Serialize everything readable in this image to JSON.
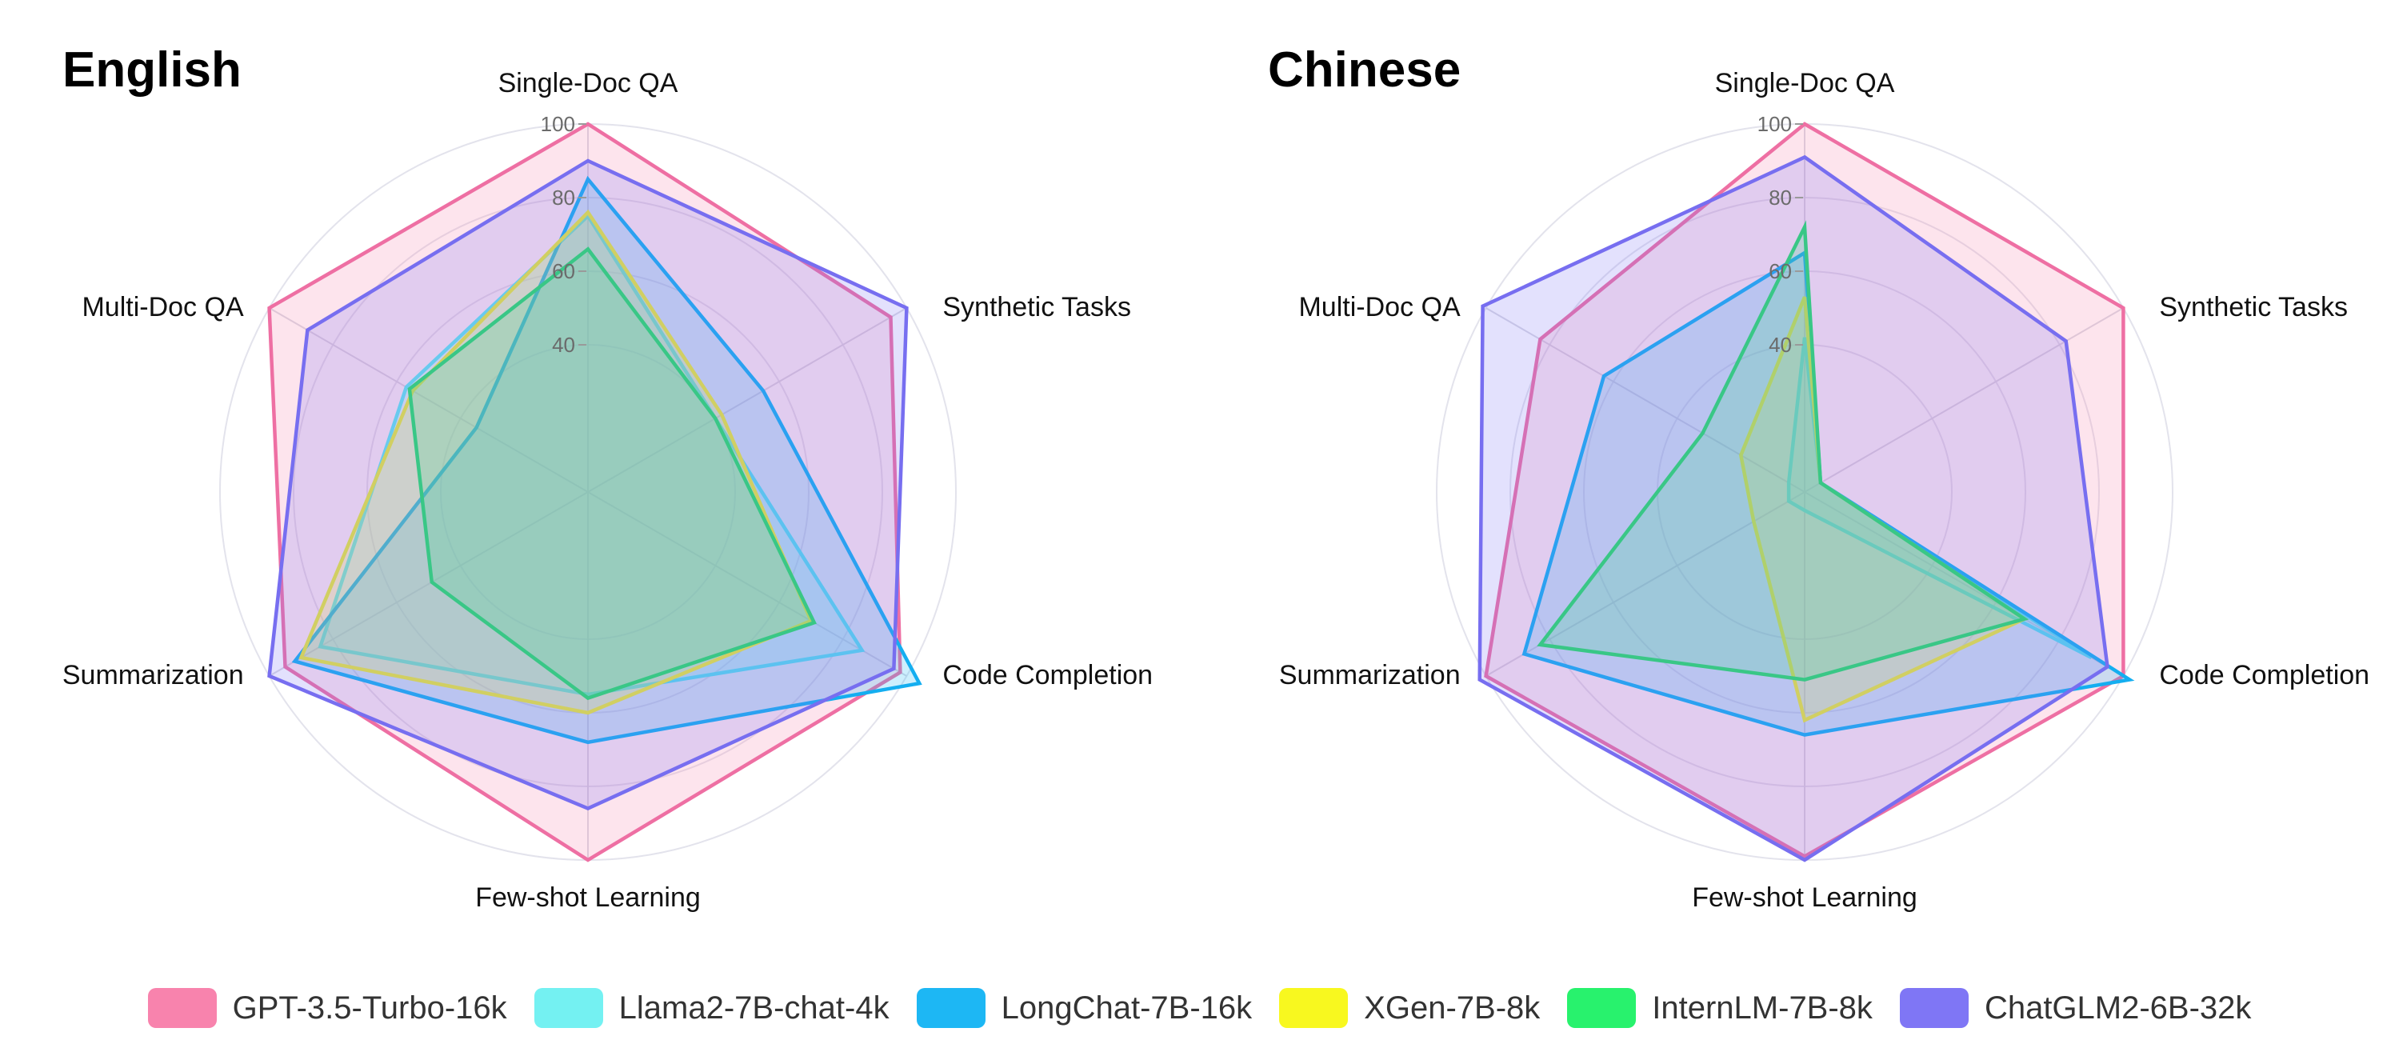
{
  "chart_data": [
    {
      "type": "radar",
      "title": "English",
      "axes": [
        "Single-Doc QA",
        "Synthetic Tasks",
        "Code Completion",
        "Few-shot Learning",
        "Summarization",
        "Multi-Doc QA"
      ],
      "rlim": [
        0,
        100
      ],
      "ticks": [
        40,
        60,
        80,
        100
      ],
      "series": [
        {
          "name": "GPT-3.5-Turbo-16k",
          "values": [
            100,
            95,
            98,
            100,
            95,
            100
          ]
        },
        {
          "name": "Llama2-7B-chat-4k",
          "values": [
            75,
            40,
            86,
            55,
            84,
            57
          ]
        },
        {
          "name": "LongChat-7B-16k",
          "values": [
            85,
            55,
            104,
            68,
            92,
            35
          ]
        },
        {
          "name": "XGen-7B-8k",
          "values": [
            76,
            42,
            70,
            60,
            90,
            55
          ]
        },
        {
          "name": "InternLM-7B-8k",
          "values": [
            66,
            40,
            71,
            56,
            49,
            56
          ]
        },
        {
          "name": "ChatGLM2-6B-32k",
          "values": [
            90,
            100,
            96,
            86,
            100,
            88
          ]
        }
      ]
    },
    {
      "type": "radar",
      "title": "Chinese",
      "axes": [
        "Single-Doc QA",
        "Synthetic Tasks",
        "Code Completion",
        "Few-shot Learning",
        "Summarization",
        "Multi-Doc QA"
      ],
      "rlim": [
        0,
        100
      ],
      "ticks": [
        40,
        60,
        80,
        100
      ],
      "series": [
        {
          "name": "GPT-3.5-Turbo-16k",
          "values": [
            100,
            100,
            100,
            99,
            100,
            83
          ]
        },
        {
          "name": "Llama2-7B-chat-4k",
          "values": [
            42,
            5,
            90,
            5,
            5,
            5
          ]
        },
        {
          "name": "LongChat-7B-16k",
          "values": [
            65,
            5,
            102,
            66,
            88,
            63
          ]
        },
        {
          "name": "XGen-7B-8k",
          "values": [
            53,
            5,
            69,
            62,
            16,
            20
          ]
        },
        {
          "name": "InternLM-7B-8k",
          "values": [
            72,
            5,
            69,
            51,
            83,
            32
          ]
        },
        {
          "name": "ChatGLM2-6B-32k",
          "values": [
            91,
            82,
            95,
            100,
            102,
            101
          ]
        }
      ]
    }
  ],
  "legend": [
    {
      "name": "GPT-3.5-Turbo-16k",
      "color": "#f883ad"
    },
    {
      "name": "Llama2-7B-chat-4k",
      "color": "#74f1f2"
    },
    {
      "name": "LongChat-7B-16k",
      "color": "#1db7f4"
    },
    {
      "name": "XGen-7B-8k",
      "color": "#f8f81f"
    },
    {
      "name": "InternLM-7B-8k",
      "color": "#28f26d"
    },
    {
      "name": "ChatGLM2-6B-32k",
      "color": "#7f76f5"
    }
  ],
  "colors": {
    "GPT-3.5-Turbo-16k": {
      "stroke": "#ee6fa3",
      "fill": "#f883ad"
    },
    "Llama2-7B-chat-4k": {
      "stroke": "#62e2ee",
      "fill": "#74f1f2"
    },
    "LongChat-7B-16k": {
      "stroke": "#14aef0",
      "fill": "#1db7f4"
    },
    "XGen-7B-8k": {
      "stroke": "#e8e839",
      "fill": "#f8f81f"
    },
    "InternLM-7B-8k": {
      "stroke": "#26de67",
      "fill": "#28f26d"
    },
    "ChatGLM2-6B-32k": {
      "stroke": "#776ef0",
      "fill": "#7f76f5"
    }
  },
  "grid": true
}
